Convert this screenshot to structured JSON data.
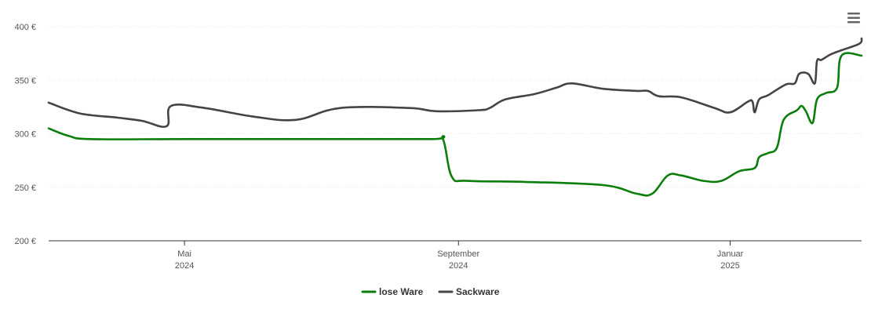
{
  "chart_data": {
    "type": "line",
    "title": "",
    "xlabel": "",
    "ylabel": "",
    "y_ticks": [
      "200 €",
      "250 €",
      "300 €",
      "350 €",
      "400 €"
    ],
    "ylim": [
      200,
      400
    ],
    "x_range": [
      "2024-03-01",
      "2025-03-01"
    ],
    "x_ticks": [
      {
        "date": "2024-05-01",
        "month": "Mai",
        "year": "2024"
      },
      {
        "date": "2024-09-01",
        "month": "September",
        "year": "2024"
      },
      {
        "date": "2025-01-01",
        "month": "Januar",
        "year": "2025"
      }
    ],
    "grid": true,
    "legend_position": "bottom-center",
    "series": [
      {
        "name": "lose Ware",
        "color": "#0a7d0a",
        "points": [
          [
            "2024-03-01",
            305
          ],
          [
            "2024-03-10",
            298
          ],
          [
            "2024-03-20",
            295
          ],
          [
            "2024-05-01",
            295
          ],
          [
            "2024-07-01",
            295
          ],
          [
            "2024-08-20",
            295
          ],
          [
            "2024-08-25",
            295
          ],
          [
            "2024-08-29",
            260
          ],
          [
            "2024-09-05",
            256
          ],
          [
            "2024-10-01",
            255
          ],
          [
            "2024-11-05",
            252
          ],
          [
            "2024-11-20",
            244
          ],
          [
            "2024-11-27",
            244
          ],
          [
            "2024-12-04",
            261
          ],
          [
            "2024-12-10",
            261
          ],
          [
            "2024-12-20",
            256
          ],
          [
            "2024-12-28",
            256
          ],
          [
            "2025-01-05",
            265
          ],
          [
            "2025-01-12",
            268
          ],
          [
            "2025-01-14",
            278
          ],
          [
            "2025-01-18",
            282
          ],
          [
            "2025-01-22",
            287
          ],
          [
            "2025-01-25",
            313
          ],
          [
            "2025-01-31",
            322
          ],
          [
            "2025-02-02",
            326
          ],
          [
            "2025-02-04",
            321
          ],
          [
            "2025-02-07",
            310
          ],
          [
            "2025-02-09",
            332
          ],
          [
            "2025-02-13",
            338
          ],
          [
            "2025-02-18",
            343
          ],
          [
            "2025-02-20",
            373
          ],
          [
            "2025-03-01",
            373
          ]
        ]
      },
      {
        "name": "Sackware",
        "color": "#444444",
        "points": [
          [
            "2024-03-01",
            329
          ],
          [
            "2024-03-15",
            319
          ],
          [
            "2024-04-01",
            315
          ],
          [
            "2024-04-12",
            312
          ],
          [
            "2024-04-23",
            307
          ],
          [
            "2024-04-25",
            326
          ],
          [
            "2024-05-10",
            324
          ],
          [
            "2024-06-01",
            316
          ],
          [
            "2024-06-20",
            313
          ],
          [
            "2024-07-10",
            324
          ],
          [
            "2024-08-10",
            324
          ],
          [
            "2024-08-22",
            321
          ],
          [
            "2024-09-10",
            322
          ],
          [
            "2024-09-15",
            324
          ],
          [
            "2024-09-22",
            332
          ],
          [
            "2024-10-05",
            337
          ],
          [
            "2024-10-15",
            343
          ],
          [
            "2024-10-22",
            347
          ],
          [
            "2024-11-05",
            342
          ],
          [
            "2024-11-20",
            340
          ],
          [
            "2024-11-25",
            340
          ],
          [
            "2024-11-30",
            335
          ],
          [
            "2024-12-10",
            334
          ],
          [
            "2024-12-25",
            324
          ],
          [
            "2025-01-01",
            320
          ],
          [
            "2025-01-09",
            330
          ],
          [
            "2025-01-11",
            330
          ],
          [
            "2025-01-12",
            320
          ],
          [
            "2025-01-14",
            332
          ],
          [
            "2025-01-18",
            336
          ],
          [
            "2025-01-26",
            346
          ],
          [
            "2025-01-30",
            347
          ],
          [
            "2025-02-01",
            356
          ],
          [
            "2025-02-05",
            356
          ],
          [
            "2025-02-08",
            347
          ],
          [
            "2025-02-09",
            368
          ],
          [
            "2025-02-11",
            369
          ],
          [
            "2025-02-15",
            374
          ],
          [
            "2025-02-20",
            378
          ],
          [
            "2025-02-28",
            384
          ],
          [
            "2025-03-01",
            389
          ]
        ]
      }
    ]
  },
  "menu_icon": "hamburger-menu-icon"
}
